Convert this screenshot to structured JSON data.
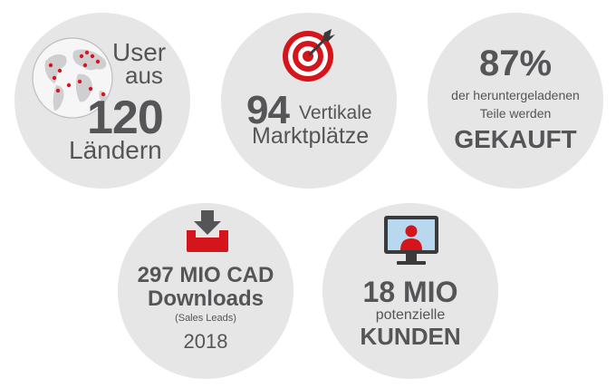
{
  "stats": [
    {
      "id": "users",
      "line1": "User",
      "line2": "aus",
      "number": "120",
      "line3": "Ländern",
      "icon": "globe-icon"
    },
    {
      "id": "marketplaces",
      "number": "94",
      "line1": "Vertikale",
      "line2": "Marktplätze",
      "icon": "target-icon"
    },
    {
      "id": "purchased",
      "number": "87%",
      "line1": "der heruntergeladenen",
      "line2": "Teile werden",
      "line3": "GEKAUFT"
    },
    {
      "id": "downloads",
      "line1": "297 MIO CAD",
      "line2": "Downloads",
      "line3": "(Sales Leads)",
      "line4": "2018",
      "icon": "download-tray-icon"
    },
    {
      "id": "customers",
      "line1": "18 MIO",
      "line2": "potenzielle",
      "line3": "KUNDEN",
      "icon": "monitor-user-icon"
    }
  ],
  "colors": {
    "circle": "#e6e6e7",
    "text": "#555557",
    "accent": "#d4151c",
    "dark": "#3a3a3c"
  }
}
